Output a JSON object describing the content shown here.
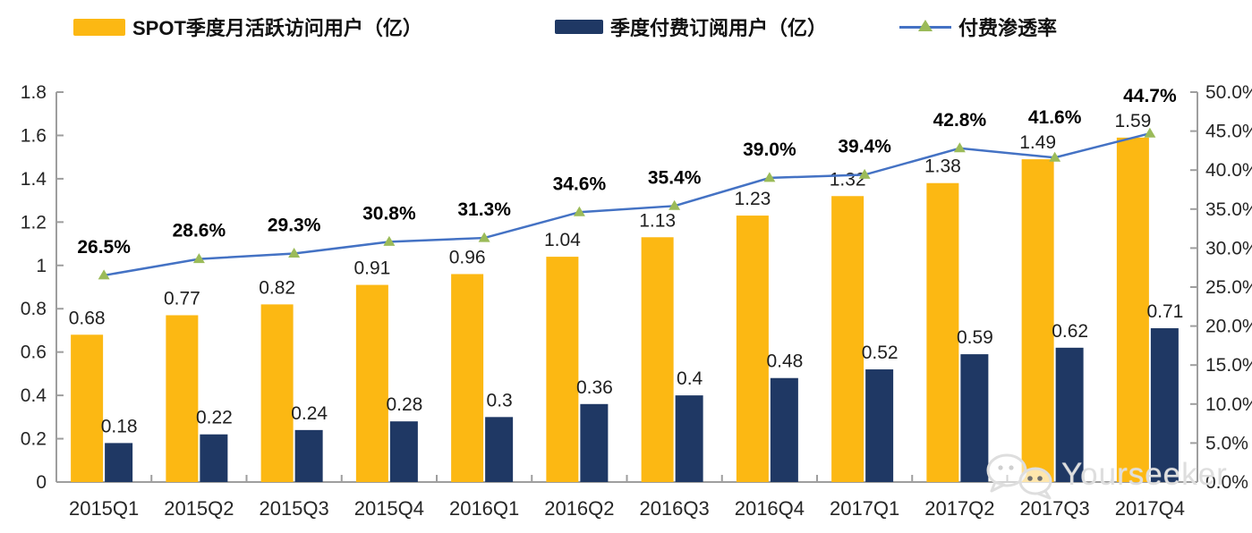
{
  "watermark": {
    "text": "Yourseeker",
    "icon": "wechat-icon"
  },
  "colors": {
    "mau_bar": "#FCB813",
    "subs_bar": "#1F3864",
    "rate_line": "#4472C4",
    "rate_marker": "#9BBB59",
    "axis": "#9e9e9e",
    "axis_text": "#262626",
    "label_text": "#1f1f1f"
  },
  "chart_data": {
    "type": "bar",
    "subtype": "combo-bar-line",
    "title": "",
    "xlabel": "",
    "ylabel_left": "",
    "ylabel_right": "",
    "grid": false,
    "legend_position": "top",
    "categories": [
      "2015Q1",
      "2015Q2",
      "2015Q3",
      "2015Q4",
      "2016Q1",
      "2016Q2",
      "2016Q3",
      "2016Q4",
      "2017Q1",
      "2017Q2",
      "2017Q3",
      "2017Q4"
    ],
    "series": [
      {
        "name": "SPOT季度月活跃访问用户（亿）",
        "type": "bar",
        "axis": "left",
        "color": "#FCB813",
        "values": [
          0.68,
          0.77,
          0.82,
          0.91,
          0.96,
          1.04,
          1.13,
          1.23,
          1.32,
          1.38,
          1.49,
          1.59
        ],
        "labels": [
          "0.68",
          "0.77",
          "0.82",
          "0.91",
          "0.96",
          "1.04",
          "1.13",
          "1.23",
          "1.32",
          "1.38",
          "1.49",
          "1.59"
        ]
      },
      {
        "name": "季度付费订阅用户（亿）",
        "type": "bar",
        "axis": "left",
        "color": "#1F3864",
        "values": [
          0.18,
          0.22,
          0.24,
          0.28,
          0.3,
          0.36,
          0.4,
          0.48,
          0.52,
          0.59,
          0.62,
          0.71
        ],
        "labels": [
          "0.18",
          "0.22",
          "0.24",
          "0.28",
          "0.3",
          "0.36",
          "0.4",
          "0.48",
          "0.52",
          "0.59",
          "0.62",
          "0.71"
        ]
      },
      {
        "name": "付费渗透率",
        "type": "line",
        "axis": "right",
        "color": "#4472C4",
        "marker": "triangle-up",
        "marker_color": "#9BBB59",
        "values": [
          26.5,
          28.6,
          29.3,
          30.8,
          31.3,
          34.6,
          35.4,
          39.0,
          39.4,
          42.8,
          41.6,
          44.7
        ],
        "labels": [
          "26.5%",
          "28.6%",
          "29.3%",
          "30.8%",
          "31.3%",
          "34.6%",
          "35.4%",
          "39.0%",
          "39.4%",
          "42.8%",
          "41.6%",
          "44.7%"
        ]
      }
    ],
    "left_axis": {
      "min": 0,
      "max": 1.8,
      "step": 0.2,
      "tick_labels": [
        "0",
        "0.2",
        "0.4",
        "0.6",
        "0.8",
        "1",
        "1.2",
        "1.4",
        "1.6",
        "1.8"
      ]
    },
    "right_axis": {
      "min": 0,
      "max": 50,
      "step": 5,
      "tick_labels": [
        "0.0%",
        "5.0%",
        "10.0%",
        "15.0%",
        "20.0%",
        "25.0%",
        "30.0%",
        "35.0%",
        "40.0%",
        "45.0%",
        "50.0%"
      ]
    }
  }
}
